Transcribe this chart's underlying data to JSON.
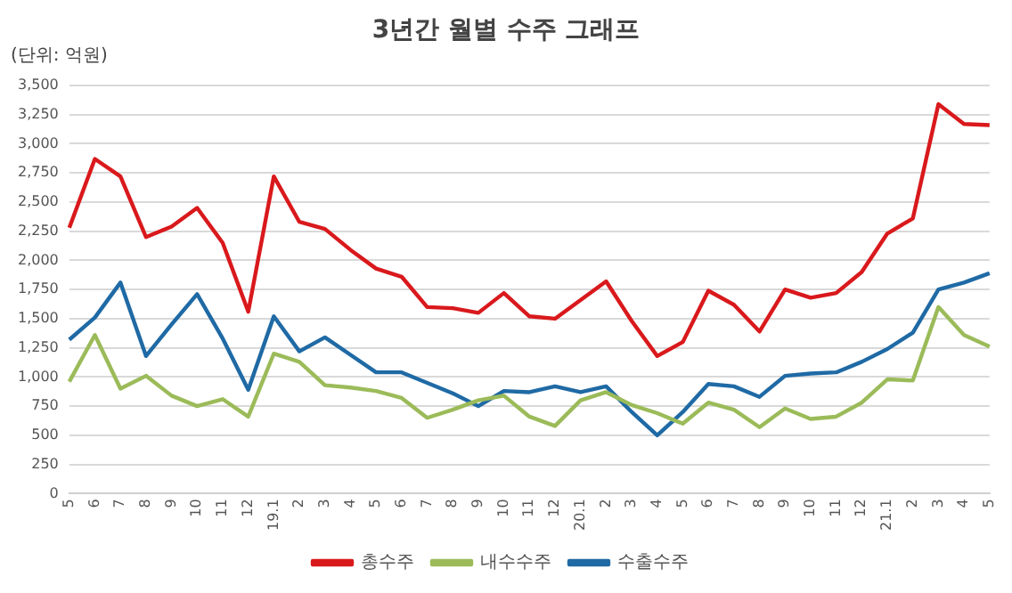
{
  "chart_data": {
    "type": "line",
    "title": "3년간 월별 수주 그래프",
    "annotations": [
      "(단위: 억원)"
    ],
    "categories": [
      "5",
      "6",
      "7",
      "8",
      "9",
      "10",
      "11",
      "12",
      "19.1",
      "2",
      "3",
      "4",
      "5",
      "6",
      "7",
      "8",
      "9",
      "10",
      "11",
      "12",
      "20.1",
      "2",
      "3",
      "4",
      "5",
      "6",
      "7",
      "8",
      "9",
      "10",
      "11",
      "12",
      "21.1",
      "2",
      "3",
      "4",
      "5"
    ],
    "series": [
      {
        "name": "총수주",
        "color": "#d9191c",
        "values": [
          2280,
          2870,
          2720,
          2200,
          2290,
          2450,
          2150,
          1560,
          2720,
          2330,
          2270,
          2090,
          1930,
          1860,
          1600,
          1590,
          1550,
          1720,
          1520,
          1500,
          1660,
          1820,
          1480,
          1180,
          1300,
          1740,
          1620,
          1390,
          1750,
          1680,
          1720,
          1900,
          2230,
          2360,
          3340,
          3170,
          3160
        ]
      },
      {
        "name": "내수수주",
        "color": "#9bbb59",
        "values": [
          960,
          1360,
          900,
          1010,
          840,
          750,
          810,
          660,
          1200,
          1130,
          930,
          910,
          880,
          820,
          650,
          720,
          800,
          840,
          660,
          580,
          800,
          870,
          760,
          690,
          600,
          780,
          720,
          570,
          730,
          640,
          660,
          780,
          980,
          970,
          1600,
          1360,
          1260
        ]
      },
      {
        "name": "수출수주",
        "color": "#1f6aa5",
        "values": [
          1320,
          1510,
          1810,
          1180,
          1450,
          1710,
          1330,
          890,
          1520,
          1220,
          1340,
          1190,
          1040,
          1040,
          950,
          860,
          750,
          880,
          870,
          920,
          870,
          920,
          700,
          500,
          700,
          940,
          920,
          830,
          1010,
          1030,
          1040,
          1130,
          1240,
          1380,
          1750,
          1810,
          1890
        ]
      }
    ],
    "ylim": [
      0,
      3500
    ],
    "yticks": [
      0,
      250,
      500,
      750,
      {
        "value": 1000,
        "label": "1,000"
      },
      {
        "value": 1250,
        "label": "1,250"
      },
      {
        "value": 1500,
        "label": "1,500"
      },
      {
        "value": 1750,
        "label": "1,750"
      },
      {
        "value": 2000,
        "label": "2,000"
      },
      {
        "value": 2250,
        "label": "2,250"
      },
      {
        "value": 2500,
        "label": "2,500"
      },
      {
        "value": 2750,
        "label": "2,750"
      },
      {
        "value": 3000,
        "label": "3,000"
      },
      {
        "value": 3250,
        "label": "3,250"
      },
      {
        "value": 3500,
        "label": "3,500"
      }
    ],
    "grid": "y",
    "legend": "bottom",
    "marker": "none",
    "line_style": "solid"
  }
}
